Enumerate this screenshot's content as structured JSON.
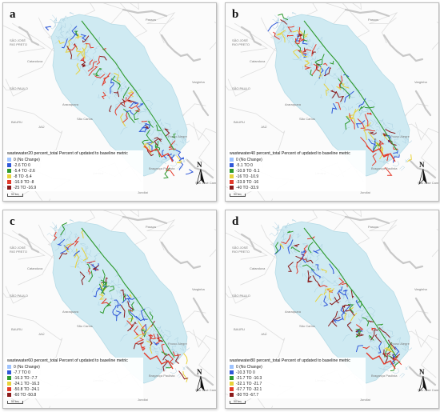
{
  "colors": {
    "no_change": "#9ec3ff",
    "class2": "#2f57d8",
    "class3": "#2e9a2e",
    "class4": "#e8d23a",
    "class5": "#e33a2a",
    "class6": "#8a1a1a",
    "basin_fill": "#cfeaf2",
    "basin_stream": "#a9cfe0",
    "reservoir": "#c8c8c8",
    "road": "#dedede"
  },
  "icons": {
    "north_arrow": "north-arrow-icon"
  },
  "panels": [
    {
      "letter": "a",
      "legend_title": "wastewater20 percent_total Percent of updated to baseline metric",
      "legend": [
        "0 (No Change)",
        "-2.6 TO 0",
        "-5.4 TO -2.6",
        "-8 TO -5.4",
        "-16.9 TO -8",
        "-25 TO -16.9"
      ]
    },
    {
      "letter": "b",
      "legend_title": "wastewater40 percent_total Percent of updated to baseline metric",
      "legend": [
        "0 (No Change)",
        "-5.1 TO 0",
        "-10.9 TO -5.1",
        "-16 TO -10.9",
        "-33.9 TO -16",
        "-40 TO -33.9"
      ]
    },
    {
      "letter": "c",
      "legend_title": "wastewater60 percent_total Percent of updated to baseline metric",
      "legend": [
        "0 (No Change)",
        "-7.7 TO 0",
        "-16.3 TO -7.7",
        "-24.1 TO -16.3",
        "-50.8 TO -24.1",
        "-60 TO -50.8"
      ]
    },
    {
      "letter": "d",
      "legend_title": "wastewater80 percent_total Percent of updated to baseline metric",
      "legend": [
        "0 (No Change)",
        "-10.3 TO 0",
        "-21.7 TO -10.3",
        "-32.1 TO -21.7",
        "-67.7 TO -32.1",
        "-80 TO -67.7"
      ]
    }
  ],
  "map_labels": {
    "sao_jose": "SÃO JOSÉ",
    "rio_preto": "RIO PRETO",
    "sao_paulo": "SÃO PAULO",
    "bauru": "BAURU",
    "jau": "JAÚ",
    "sao_carlos": "São Carlos",
    "pouso_alegre": "Pouso Alegre",
    "braganca": "Bragança Paulista",
    "sao_jose_campos": "São José Campos",
    "jundiai": "Jundiaí",
    "catanduva": "Catanduva",
    "araraquara": "Araraquara",
    "passos": "Passos",
    "varginha": "Varginha",
    "limeira": "Limeira",
    "scale": "50 km"
  }
}
